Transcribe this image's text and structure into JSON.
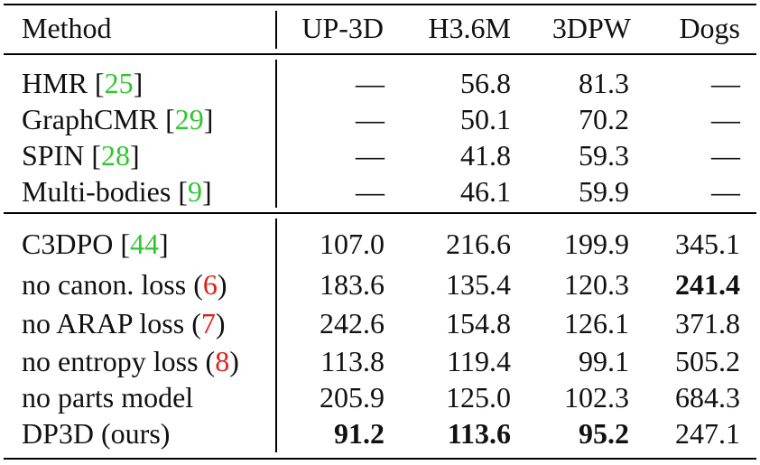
{
  "header": {
    "method": "Method",
    "col1": "UP-3D",
    "col2": "H3.6M",
    "col3": "3DPW",
    "col4": "Dogs"
  },
  "group1": [
    {
      "name": "HMR ",
      "lb": "[",
      "ref": "25",
      "rb": "]",
      "v1": "—",
      "v2": "56.8",
      "v3": "81.3",
      "v4": "—"
    },
    {
      "name": "GraphCMR ",
      "lb": "[",
      "ref": "29",
      "rb": "]",
      "v1": "—",
      "v2": "50.1",
      "v3": "70.2",
      "v4": "—"
    },
    {
      "name": "SPIN ",
      "lb": "[",
      "ref": "28",
      "rb": "]",
      "v1": "—",
      "v2": "41.8",
      "v3": "59.3",
      "v4": "—"
    },
    {
      "name": "Multi-bodies ",
      "lb": "[",
      "ref": "9",
      "rb": "]",
      "v1": "—",
      "v2": "46.1",
      "v3": "59.9",
      "v4": "—"
    }
  ],
  "group2": [
    {
      "name": "C3DPO ",
      "lb": "[",
      "ref": "44",
      "rb": "]",
      "v1": "107.0",
      "v2": "216.6",
      "v3": "199.9",
      "v4": "345.1"
    },
    {
      "name": "no canon. loss ",
      "lb": "(",
      "ref": "6",
      "rb": ")",
      "v1": "183.6",
      "v2": "135.4",
      "v3": "120.3",
      "v4": "241.4"
    },
    {
      "name": "no ARAP loss ",
      "lb": "(",
      "ref": "7",
      "rb": ")",
      "v1": "242.6",
      "v2": "154.8",
      "v3": "126.1",
      "v4": "371.8"
    },
    {
      "name": "no entropy loss ",
      "lb": "(",
      "ref": "8",
      "rb": ")",
      "v1": "113.8",
      "v2": "119.4",
      "v3": "99.1",
      "v4": "505.2"
    },
    {
      "name": "no parts model",
      "v1": "205.9",
      "v2": "125.0",
      "v3": "102.3",
      "v4": "684.3"
    },
    {
      "name": "DP3D (ours)",
      "v1": "91.2",
      "v2": "113.6",
      "v3": "95.2",
      "v4": "247.1"
    }
  ],
  "colors": {
    "citation_ref": "#2ec82e",
    "equation_ref": "#e0201a"
  }
}
